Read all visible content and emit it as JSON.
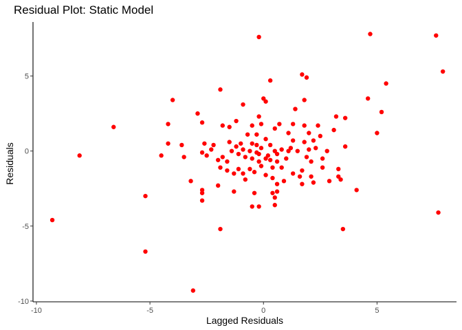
{
  "chart_data": {
    "type": "scatter",
    "title": "Residual Plot: Static Model",
    "xlabel": "Lagged Residuals",
    "ylabel": "Residuals",
    "xlim": [
      -10.15,
      8.5
    ],
    "ylim": [
      -10.05,
      8.6
    ],
    "xticks": [
      -10,
      -5,
      0,
      5
    ],
    "yticks": [
      -10,
      -5,
      0,
      5
    ],
    "xtick_labels": [
      "-10",
      "-5",
      "0",
      "5"
    ],
    "ytick_labels": [
      "-10",
      "-5",
      "0",
      "5"
    ],
    "grid": false,
    "point_color": "#ff0000",
    "points": [
      [
        -9.3,
        -4.6
      ],
      [
        -8.1,
        -0.3
      ],
      [
        -6.6,
        1.6
      ],
      [
        -5.2,
        -3.0
      ],
      [
        -5.2,
        -6.7
      ],
      [
        -4.5,
        -0.3
      ],
      [
        -4.2,
        0.5
      ],
      [
        -4.2,
        1.8
      ],
      [
        -4.0,
        3.4
      ],
      [
        -3.6,
        0.4
      ],
      [
        -3.5,
        -0.4
      ],
      [
        -3.2,
        -2.0
      ],
      [
        -3.1,
        -9.3
      ],
      [
        -2.9,
        2.5
      ],
      [
        -2.7,
        -2.6
      ],
      [
        -2.7,
        -2.8
      ],
      [
        -2.7,
        -3.3
      ],
      [
        -2.7,
        1.9
      ],
      [
        -2.7,
        -0.1
      ],
      [
        -2.6,
        0.5
      ],
      [
        -2.5,
        -0.3
      ],
      [
        -2.3,
        0.1
      ],
      [
        -2.2,
        0.4
      ],
      [
        -2.0,
        -0.6
      ],
      [
        -2.0,
        -2.3
      ],
      [
        -1.9,
        4.1
      ],
      [
        -1.9,
        -5.2
      ],
      [
        -1.9,
        -1.1
      ],
      [
        -1.8,
        1.7
      ],
      [
        -1.8,
        -0.4
      ],
      [
        -1.6,
        -1.3
      ],
      [
        -1.6,
        -0.7
      ],
      [
        -1.5,
        0.6
      ],
      [
        -1.5,
        1.6
      ],
      [
        -1.4,
        0.0
      ],
      [
        -1.3,
        -2.7
      ],
      [
        -1.3,
        -1.5
      ],
      [
        -1.2,
        2.0
      ],
      [
        -1.2,
        0.3
      ],
      [
        -1.1,
        -0.2
      ],
      [
        -1.1,
        -1.2
      ],
      [
        -1.0,
        0.5
      ],
      [
        -0.9,
        0.1
      ],
      [
        -0.9,
        -1.5
      ],
      [
        -0.9,
        3.1
      ],
      [
        -0.8,
        -0.4
      ],
      [
        -0.8,
        -1.9
      ],
      [
        -0.7,
        1.1
      ],
      [
        -0.6,
        0.0
      ],
      [
        -0.6,
        -1.2
      ],
      [
        -0.5,
        0.5
      ],
      [
        -0.5,
        -0.5
      ],
      [
        -0.5,
        1.7
      ],
      [
        -0.5,
        -3.7
      ],
      [
        -0.4,
        -1.4
      ],
      [
        -0.4,
        -2.8
      ],
      [
        -0.3,
        -0.1
      ],
      [
        -0.3,
        0.4
      ],
      [
        -0.3,
        1.1
      ],
      [
        -0.2,
        2.3
      ],
      [
        -0.2,
        -0.7
      ],
      [
        -0.2,
        -0.2
      ],
      [
        -0.2,
        -3.7
      ],
      [
        -0.1,
        1.8
      ],
      [
        -0.1,
        0.2
      ],
      [
        -0.1,
        -1.0
      ],
      [
        -0.2,
        7.6
      ],
      [
        0.0,
        3.5
      ],
      [
        0.1,
        -0.5
      ],
      [
        0.1,
        0.8
      ],
      [
        0.1,
        -1.6
      ],
      [
        0.1,
        3.3
      ],
      [
        0.2,
        -0.3
      ],
      [
        0.3,
        0.4
      ],
      [
        0.3,
        -0.6
      ],
      [
        0.3,
        4.7
      ],
      [
        0.4,
        -1.1
      ],
      [
        0.4,
        -1.8
      ],
      [
        0.4,
        -2.8
      ],
      [
        0.5,
        0.0
      ],
      [
        0.5,
        1.5
      ],
      [
        0.5,
        -3.6
      ],
      [
        0.5,
        -3.1
      ],
      [
        0.6,
        -0.7
      ],
      [
        0.6,
        -2.2
      ],
      [
        0.6,
        -0.2
      ],
      [
        0.6,
        -2.7
      ],
      [
        0.7,
        1.8
      ],
      [
        0.8,
        -1.1
      ],
      [
        0.8,
        0.1
      ],
      [
        0.9,
        -2.0
      ],
      [
        1.0,
        -0.5
      ],
      [
        1.1,
        1.2
      ],
      [
        1.1,
        0.0
      ],
      [
        1.2,
        0.2
      ],
      [
        1.3,
        -1.5
      ],
      [
        1.3,
        1.8
      ],
      [
        1.3,
        0.7
      ],
      [
        1.4,
        2.8
      ],
      [
        1.5,
        0.0
      ],
      [
        1.6,
        -1.7
      ],
      [
        1.7,
        5.1
      ],
      [
        1.7,
        -2.2
      ],
      [
        1.7,
        -1.3
      ],
      [
        1.8,
        3.4
      ],
      [
        1.8,
        1.7
      ],
      [
        1.8,
        0.6
      ],
      [
        1.9,
        4.9
      ],
      [
        1.9,
        -0.4
      ],
      [
        2.0,
        1.2
      ],
      [
        2.0,
        0.1
      ],
      [
        2.1,
        -0.7
      ],
      [
        2.1,
        -1.7
      ],
      [
        2.2,
        0.7
      ],
      [
        2.2,
        -2.1
      ],
      [
        2.3,
        0.2
      ],
      [
        2.4,
        1.7
      ],
      [
        2.5,
        1.0
      ],
      [
        2.6,
        -0.5
      ],
      [
        2.6,
        -1.1
      ],
      [
        2.8,
        0.0
      ],
      [
        2.9,
        -2.0
      ],
      [
        3.1,
        1.4
      ],
      [
        3.2,
        2.3
      ],
      [
        3.3,
        -1.2
      ],
      [
        3.3,
        -1.7
      ],
      [
        3.4,
        -1.9
      ],
      [
        3.5,
        -5.2
      ],
      [
        3.6,
        2.2
      ],
      [
        3.6,
        0.3
      ],
      [
        4.1,
        -2.6
      ],
      [
        4.6,
        3.5
      ],
      [
        4.7,
        7.8
      ],
      [
        5.0,
        1.2
      ],
      [
        5.2,
        2.6
      ],
      [
        5.4,
        4.5
      ],
      [
        7.6,
        7.7
      ],
      [
        7.7,
        -4.1
      ],
      [
        7.9,
        5.3
      ]
    ]
  }
}
